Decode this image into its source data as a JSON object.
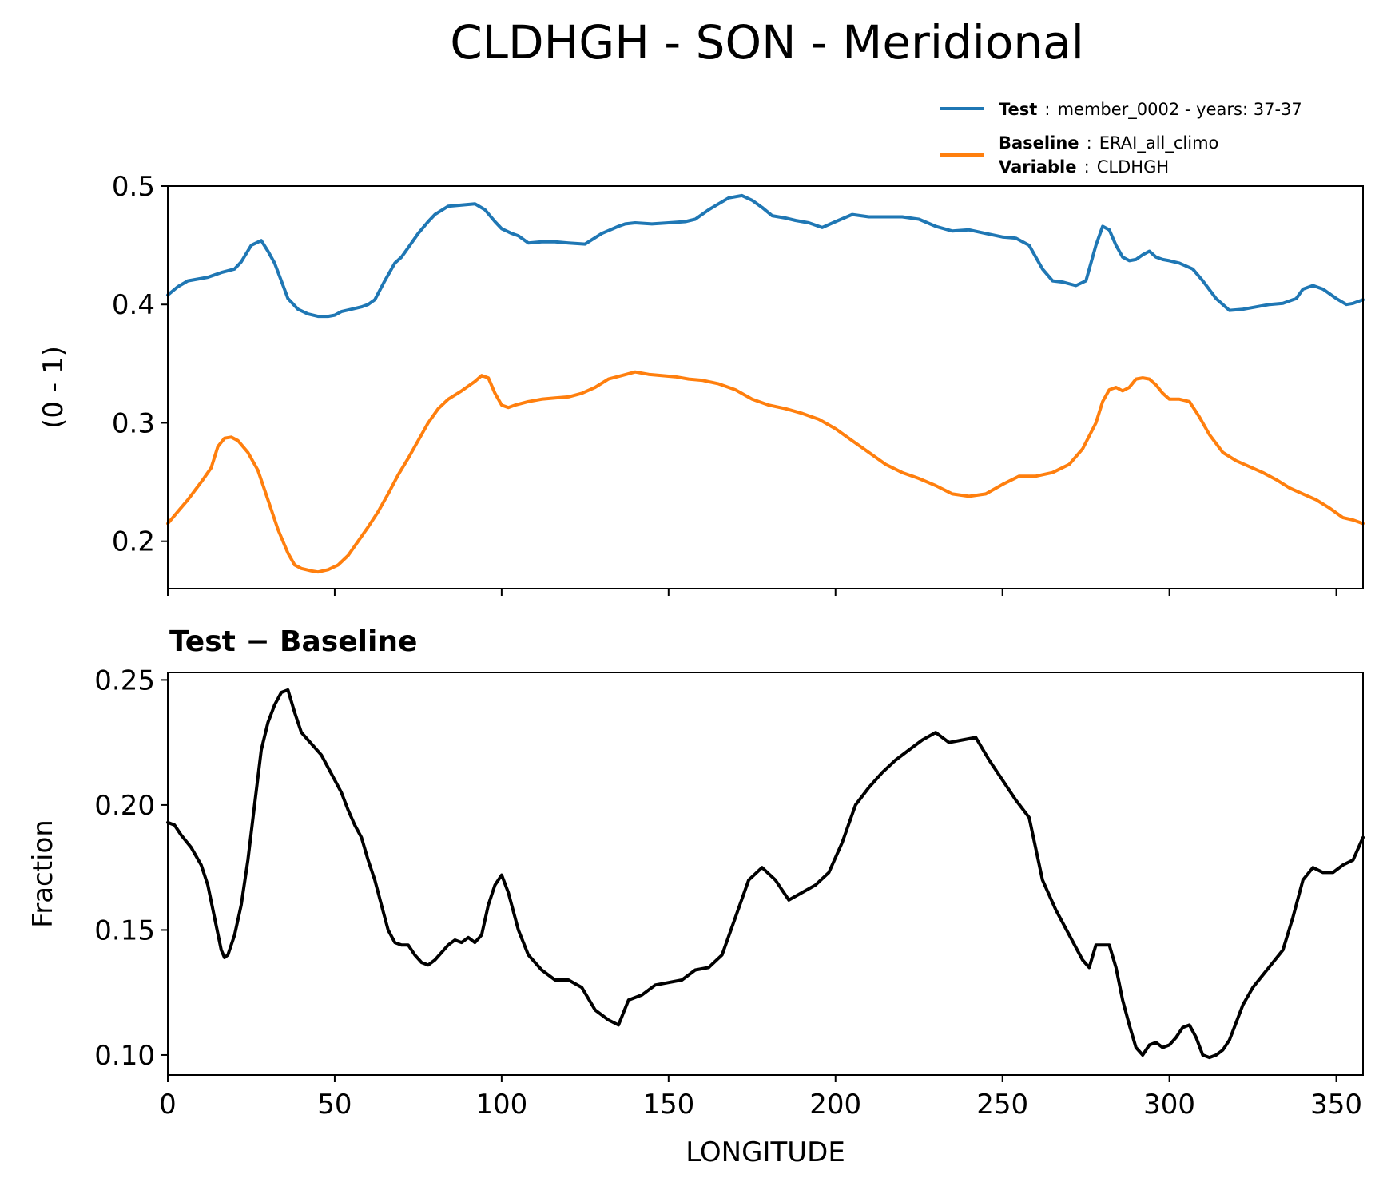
{
  "figure": {
    "title": "CLDHGH - SON - Meridional"
  },
  "legend": {
    "test_key": "Test",
    "sep": ":",
    "test_value": "member_0002 - years: 37-37",
    "baseline_key": "Baseline",
    "baseline_value": "ERAI_all_climo",
    "variable_key": "Variable",
    "variable_value": "CLDHGH"
  },
  "colors": {
    "test": "#1f77b4",
    "baseline": "#ff7f0e",
    "diff": "#000000"
  },
  "chart_data": [
    {
      "type": "line",
      "title": "",
      "xlabel": "",
      "ylabel": "(0 - 1)",
      "xlim": [
        0,
        358
      ],
      "ylim": [
        0.16,
        0.5
      ],
      "yticks": [
        0.2,
        0.3,
        0.4,
        0.5
      ],
      "ytick_labels": [
        "0.2",
        "0.3",
        "0.4",
        "0.5"
      ],
      "xticks": [
        0,
        50,
        100,
        150,
        200,
        250,
        300,
        350
      ],
      "series": [
        {
          "name": "Test",
          "color": "#1f77b4",
          "x": [
            0,
            3,
            6,
            10,
            12,
            14,
            16,
            20,
            22,
            25,
            28,
            30,
            32,
            34,
            36,
            39,
            42,
            45,
            48,
            50,
            52,
            55,
            58,
            60,
            62,
            65,
            68,
            70,
            72,
            75,
            78,
            80,
            84,
            88,
            92,
            95,
            98,
            100,
            103,
            105,
            108,
            112,
            116,
            120,
            125,
            130,
            135,
            137,
            140,
            145,
            150,
            155,
            158,
            162,
            165,
            168,
            172,
            175,
            178,
            181,
            185,
            188,
            192,
            196,
            200,
            205,
            210,
            215,
            220,
            225,
            230,
            235,
            240,
            245,
            250,
            254,
            258,
            262,
            265,
            268,
            272,
            275,
            278,
            280,
            282,
            284,
            286,
            288,
            290,
            292,
            294,
            296,
            298,
            300,
            303,
            307,
            310,
            314,
            318,
            322,
            326,
            330,
            334,
            338,
            340,
            343,
            346,
            350,
            353,
            355,
            358
          ],
          "y": [
            0.408,
            0.415,
            0.42,
            0.422,
            0.423,
            0.425,
            0.427,
            0.43,
            0.436,
            0.45,
            0.454,
            0.445,
            0.435,
            0.42,
            0.405,
            0.396,
            0.392,
            0.39,
            0.39,
            0.391,
            0.394,
            0.396,
            0.398,
            0.4,
            0.404,
            0.42,
            0.435,
            0.44,
            0.448,
            0.46,
            0.47,
            0.476,
            0.483,
            0.484,
            0.485,
            0.48,
            0.47,
            0.464,
            0.46,
            0.458,
            0.452,
            0.453,
            0.453,
            0.452,
            0.451,
            0.46,
            0.466,
            0.468,
            0.469,
            0.468,
            0.469,
            0.47,
            0.472,
            0.48,
            0.485,
            0.49,
            0.492,
            0.488,
            0.482,
            0.475,
            0.473,
            0.471,
            0.469,
            0.465,
            0.47,
            0.476,
            0.474,
            0.474,
            0.474,
            0.472,
            0.466,
            0.462,
            0.463,
            0.46,
            0.457,
            0.456,
            0.45,
            0.43,
            0.42,
            0.419,
            0.416,
            0.42,
            0.45,
            0.466,
            0.463,
            0.45,
            0.44,
            0.437,
            0.438,
            0.442,
            0.445,
            0.44,
            0.438,
            0.437,
            0.435,
            0.43,
            0.42,
            0.405,
            0.395,
            0.396,
            0.398,
            0.4,
            0.401,
            0.405,
            0.413,
            0.416,
            0.413,
            0.405,
            0.4,
            0.401,
            0.404
          ]
        },
        {
          "name": "Baseline",
          "color": "#ff7f0e",
          "x": [
            0,
            3,
            6,
            10,
            13,
            15,
            17,
            19,
            21,
            24,
            27,
            30,
            33,
            36,
            38,
            40,
            43,
            45,
            48,
            51,
            54,
            57,
            60,
            63,
            66,
            69,
            72,
            75,
            78,
            81,
            84,
            88,
            92,
            94,
            96,
            98,
            100,
            102,
            104,
            108,
            112,
            116,
            120,
            124,
            128,
            132,
            136,
            140,
            144,
            148,
            152,
            156,
            160,
            165,
            170,
            175,
            180,
            185,
            190,
            195,
            200,
            205,
            210,
            215,
            220,
            225,
            230,
            235,
            240,
            245,
            250,
            255,
            260,
            265,
            270,
            274,
            278,
            280,
            282,
            284,
            286,
            288,
            290,
            292,
            294,
            296,
            298,
            300,
            303,
            306,
            309,
            312,
            316,
            320,
            324,
            328,
            332,
            336,
            340,
            344,
            348,
            352,
            355,
            358
          ],
          "y": [
            0.215,
            0.225,
            0.235,
            0.25,
            0.262,
            0.28,
            0.287,
            0.288,
            0.285,
            0.275,
            0.26,
            0.235,
            0.21,
            0.19,
            0.18,
            0.177,
            0.175,
            0.174,
            0.176,
            0.18,
            0.188,
            0.2,
            0.212,
            0.225,
            0.24,
            0.256,
            0.27,
            0.285,
            0.3,
            0.312,
            0.32,
            0.327,
            0.335,
            0.34,
            0.338,
            0.325,
            0.315,
            0.313,
            0.315,
            0.318,
            0.32,
            0.321,
            0.322,
            0.325,
            0.33,
            0.337,
            0.34,
            0.343,
            0.341,
            0.34,
            0.339,
            0.337,
            0.336,
            0.333,
            0.328,
            0.32,
            0.315,
            0.312,
            0.308,
            0.303,
            0.295,
            0.285,
            0.275,
            0.265,
            0.258,
            0.253,
            0.247,
            0.24,
            0.238,
            0.24,
            0.248,
            0.255,
            0.255,
            0.258,
            0.265,
            0.278,
            0.3,
            0.318,
            0.328,
            0.33,
            0.327,
            0.33,
            0.337,
            0.338,
            0.337,
            0.332,
            0.325,
            0.32,
            0.32,
            0.318,
            0.305,
            0.29,
            0.275,
            0.268,
            0.263,
            0.258,
            0.252,
            0.245,
            0.24,
            0.235,
            0.228,
            0.22,
            0.218,
            0.215
          ]
        }
      ]
    },
    {
      "type": "line",
      "title": "Test − Baseline",
      "xlabel": "LONGITUDE",
      "ylabel": "Fraction",
      "xlim": [
        0,
        358
      ],
      "ylim": [
        0.092,
        0.253
      ],
      "yticks": [
        0.1,
        0.15,
        0.2,
        0.25
      ],
      "ytick_labels": [
        "0.10",
        "0.15",
        "0.20",
        "0.25"
      ],
      "xticks": [
        0,
        50,
        100,
        150,
        200,
        250,
        300,
        350
      ],
      "xtick_labels": [
        "0",
        "50",
        "100",
        "150",
        "200",
        "250",
        "300",
        "350"
      ],
      "series": [
        {
          "name": "Test − Baseline",
          "color": "#000000",
          "x": [
            0,
            2,
            4,
            7,
            10,
            12,
            14,
            16,
            17,
            18,
            20,
            22,
            24,
            26,
            28,
            30,
            32,
            34,
            36,
            38,
            40,
            42,
            44,
            46,
            48,
            50,
            52,
            54,
            56,
            58,
            60,
            62,
            64,
            66,
            68,
            70,
            72,
            74,
            76,
            78,
            80,
            82,
            84,
            86,
            88,
            90,
            92,
            94,
            96,
            98,
            100,
            102,
            103,
            105,
            108,
            112,
            116,
            120,
            124,
            128,
            132,
            135,
            138,
            142,
            146,
            150,
            154,
            158,
            162,
            166,
            170,
            174,
            178,
            182,
            186,
            190,
            194,
            198,
            202,
            206,
            210,
            214,
            218,
            222,
            226,
            230,
            234,
            238,
            242,
            246,
            250,
            254,
            258,
            262,
            266,
            270,
            274,
            276,
            278,
            280,
            282,
            284,
            286,
            288,
            290,
            292,
            294,
            296,
            298,
            300,
            302,
            304,
            306,
            308,
            310,
            312,
            314,
            316,
            318,
            320,
            322,
            325,
            328,
            331,
            334,
            337,
            340,
            343,
            346,
            349,
            352,
            355,
            358
          ],
          "y": [
            0.193,
            0.192,
            0.188,
            0.183,
            0.176,
            0.168,
            0.155,
            0.142,
            0.139,
            0.14,
            0.148,
            0.16,
            0.178,
            0.2,
            0.222,
            0.233,
            0.24,
            0.245,
            0.246,
            0.237,
            0.229,
            0.226,
            0.223,
            0.22,
            0.215,
            0.21,
            0.205,
            0.198,
            0.192,
            0.187,
            0.178,
            0.17,
            0.16,
            0.15,
            0.145,
            0.144,
            0.144,
            0.14,
            0.137,
            0.136,
            0.138,
            0.141,
            0.144,
            0.146,
            0.145,
            0.147,
            0.145,
            0.148,
            0.16,
            0.168,
            0.172,
            0.165,
            0.16,
            0.15,
            0.14,
            0.134,
            0.13,
            0.13,
            0.127,
            0.118,
            0.114,
            0.112,
            0.122,
            0.124,
            0.128,
            0.129,
            0.13,
            0.134,
            0.135,
            0.14,
            0.155,
            0.17,
            0.175,
            0.17,
            0.162,
            0.165,
            0.168,
            0.173,
            0.185,
            0.2,
            0.207,
            0.213,
            0.218,
            0.222,
            0.226,
            0.229,
            0.225,
            0.226,
            0.227,
            0.218,
            0.21,
            0.202,
            0.195,
            0.17,
            0.158,
            0.148,
            0.138,
            0.135,
            0.144,
            0.144,
            0.144,
            0.135,
            0.122,
            0.112,
            0.103,
            0.1,
            0.104,
            0.105,
            0.103,
            0.104,
            0.107,
            0.111,
            0.112,
            0.107,
            0.1,
            0.099,
            0.1,
            0.102,
            0.106,
            0.113,
            0.12,
            0.127,
            0.132,
            0.137,
            0.142,
            0.155,
            0.17,
            0.175,
            0.173,
            0.173,
            0.176,
            0.178,
            0.187
          ]
        }
      ]
    }
  ]
}
